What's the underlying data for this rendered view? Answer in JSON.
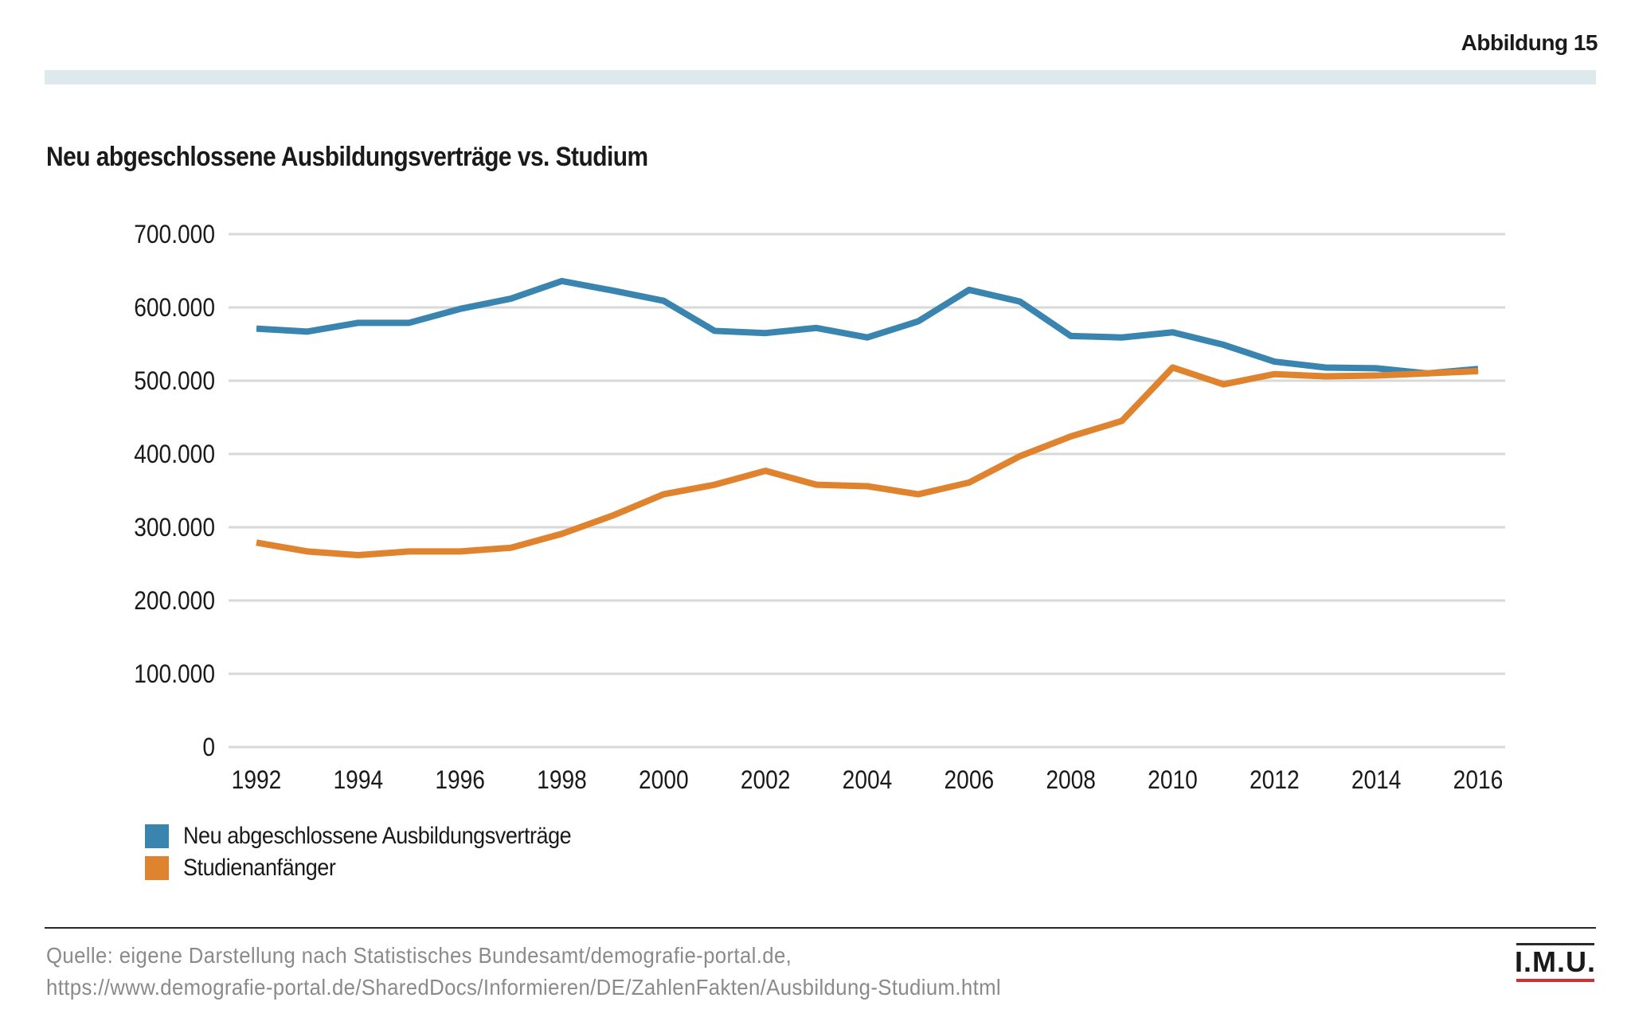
{
  "figure_label": "Abbildung 15",
  "chart_data": {
    "type": "line",
    "title": "Neu abgeschlossene Ausbildungsverträge vs. Studium",
    "x": [
      1992,
      1993,
      1994,
      1995,
      1996,
      1997,
      1998,
      1999,
      2000,
      2001,
      2002,
      2003,
      2004,
      2005,
      2006,
      2007,
      2008,
      2009,
      2010,
      2011,
      2012,
      2013,
      2014,
      2015,
      2016
    ],
    "x_tick_labels": [
      "1992",
      "1994",
      "1996",
      "1998",
      "2000",
      "2002",
      "2004",
      "2006",
      "2008",
      "2010",
      "2012",
      "2014",
      "2016"
    ],
    "y_tick_labels": [
      "0",
      "100.000",
      "200.000",
      "300.000",
      "400.000",
      "500.000",
      "600.000",
      "700.000"
    ],
    "y_ticks": [
      0,
      100000,
      200000,
      300000,
      400000,
      500000,
      600000,
      700000
    ],
    "ylim": [
      0,
      700000
    ],
    "grid": true,
    "legend_position": "bottom-left",
    "series": [
      {
        "name": "Neu abgeschlossene Ausbildungsverträge",
        "color": "#3a85b0",
        "values": [
          571000,
          567000,
          579000,
          579000,
          598000,
          612000,
          636000,
          623000,
          609000,
          568000,
          565000,
          572000,
          559000,
          581000,
          624000,
          608000,
          561000,
          559000,
          566000,
          549000,
          526000,
          518000,
          517000,
          510000,
          516000
        ]
      },
      {
        "name": "Studienanfänger",
        "color": "#e0832f",
        "values": [
          279000,
          267000,
          262000,
          267000,
          267000,
          272000,
          291000,
          316000,
          345000,
          358000,
          377000,
          358000,
          356000,
          345000,
          361000,
          397000,
          424000,
          445000,
          518000,
          495000,
          509000,
          506000,
          507000,
          510000,
          513000
        ]
      }
    ],
    "grid_color": "#d9d9d9"
  },
  "source": {
    "line1": "Quelle: eigene Darstellung nach Statistisches Bundesamt/demografie-portal.de,",
    "line2": "https://www.demografie-portal.de/SharedDocs/Informieren/DE/ZahlenFakten/Ausbildung-Studium.html"
  },
  "logo": {
    "text": "I.M.U.",
    "accent_color": "#d32f2f"
  }
}
